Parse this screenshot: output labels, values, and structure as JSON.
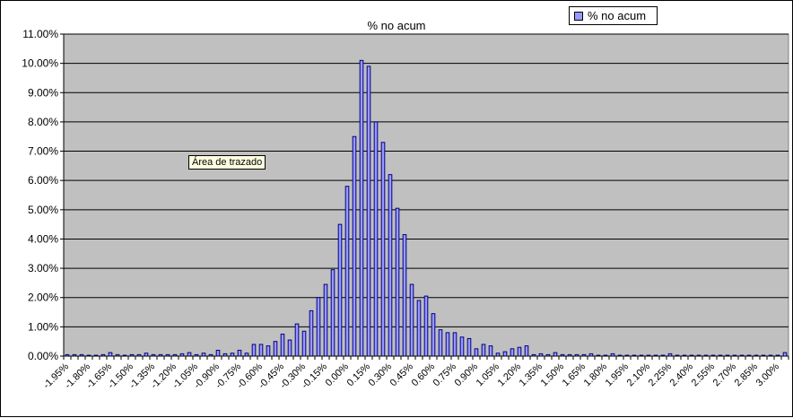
{
  "chart_data": {
    "type": "bar",
    "title": "% no acum",
    "legend_position": "top-right",
    "grid": true,
    "ylim": [
      0,
      11
    ],
    "yticks": [
      "0.00%",
      "1.00%",
      "2.00%",
      "3.00%",
      "4.00%",
      "5.00%",
      "6.00%",
      "7.00%",
      "8.00%",
      "9.00%",
      "10.00%",
      "11.00%"
    ],
    "colors": {
      "bar_fill": "#9999ff",
      "bar_edge": "#000080",
      "plot_bg": "#c0c0c0"
    },
    "categories": [
      "-1.95%",
      "-1.90%",
      "-1.85%",
      "-1.80%",
      "-1.75%",
      "-1.70%",
      "-1.65%",
      "-1.60%",
      "-1.55%",
      "-1.50%",
      "-1.45%",
      "-1.40%",
      "-1.35%",
      "-1.30%",
      "-1.25%",
      "-1.20%",
      "-1.15%",
      "-1.10%",
      "-1.05%",
      "-1.00%",
      "-0.95%",
      "-0.90%",
      "-0.85%",
      "-0.80%",
      "-0.75%",
      "-0.70%",
      "-0.65%",
      "-0.60%",
      "-0.55%",
      "-0.50%",
      "-0.45%",
      "-0.40%",
      "-0.35%",
      "-0.30%",
      "-0.25%",
      "-0.20%",
      "-0.15%",
      "-0.10%",
      "-0.05%",
      "0.00%",
      "0.05%",
      "0.10%",
      "0.15%",
      "0.20%",
      "0.25%",
      "0.30%",
      "0.35%",
      "0.40%",
      "0.45%",
      "0.50%",
      "0.55%",
      "0.60%",
      "0.65%",
      "0.70%",
      "0.75%",
      "0.80%",
      "0.85%",
      "0.90%",
      "0.95%",
      "1.00%",
      "1.05%",
      "1.10%",
      "1.15%",
      "1.20%",
      "1.25%",
      "1.30%",
      "1.35%",
      "1.40%",
      "1.45%",
      "1.50%",
      "1.55%",
      "1.60%",
      "1.65%",
      "1.70%",
      "1.75%",
      "1.80%",
      "1.85%",
      "1.90%",
      "1.95%",
      "2.00%",
      "2.05%",
      "2.10%",
      "2.15%",
      "2.20%",
      "2.25%",
      "2.30%",
      "2.35%",
      "2.40%",
      "2.45%",
      "2.50%",
      "2.55%",
      "2.60%",
      "2.65%",
      "2.70%",
      "2.75%",
      "2.80%",
      "2.85%",
      "2.90%",
      "2.95%",
      "3.00%",
      "3.05%"
    ],
    "series": [
      {
        "name": "% no acum",
        "values": [
          0.05,
          0.05,
          0.05,
          0.03,
          0.03,
          0.05,
          0.12,
          0.05,
          0.03,
          0.05,
          0.05,
          0.1,
          0.05,
          0.05,
          0.05,
          0.05,
          0.08,
          0.12,
          0.05,
          0.1,
          0.05,
          0.2,
          0.08,
          0.1,
          0.2,
          0.1,
          0.4,
          0.4,
          0.35,
          0.5,
          0.75,
          0.55,
          1.1,
          0.85,
          1.55,
          2.0,
          2.45,
          2.95,
          4.5,
          5.8,
          7.5,
          10.1,
          9.9,
          8.0,
          7.3,
          6.2,
          5.05,
          4.15,
          2.45,
          1.9,
          2.05,
          1.45,
          0.9,
          0.8,
          0.8,
          0.65,
          0.6,
          0.25,
          0.4,
          0.35,
          0.1,
          0.15,
          0.25,
          0.3,
          0.35,
          0.05,
          0.08,
          0.05,
          0.12,
          0.05,
          0.05,
          0.05,
          0.05,
          0.08,
          0.03,
          0.03,
          0.08,
          0.03,
          0.03,
          0.03,
          0.03,
          0.03,
          0.03,
          0.03,
          0.08,
          0.03,
          0.03,
          0.03,
          0.03,
          0.03,
          0.03,
          0.03,
          0.03,
          0.03,
          0.03,
          0.03,
          0.03,
          0.03,
          0.03,
          0.03,
          0.12
        ]
      }
    ]
  },
  "tooltip": {
    "text": "Área de trazado"
  }
}
